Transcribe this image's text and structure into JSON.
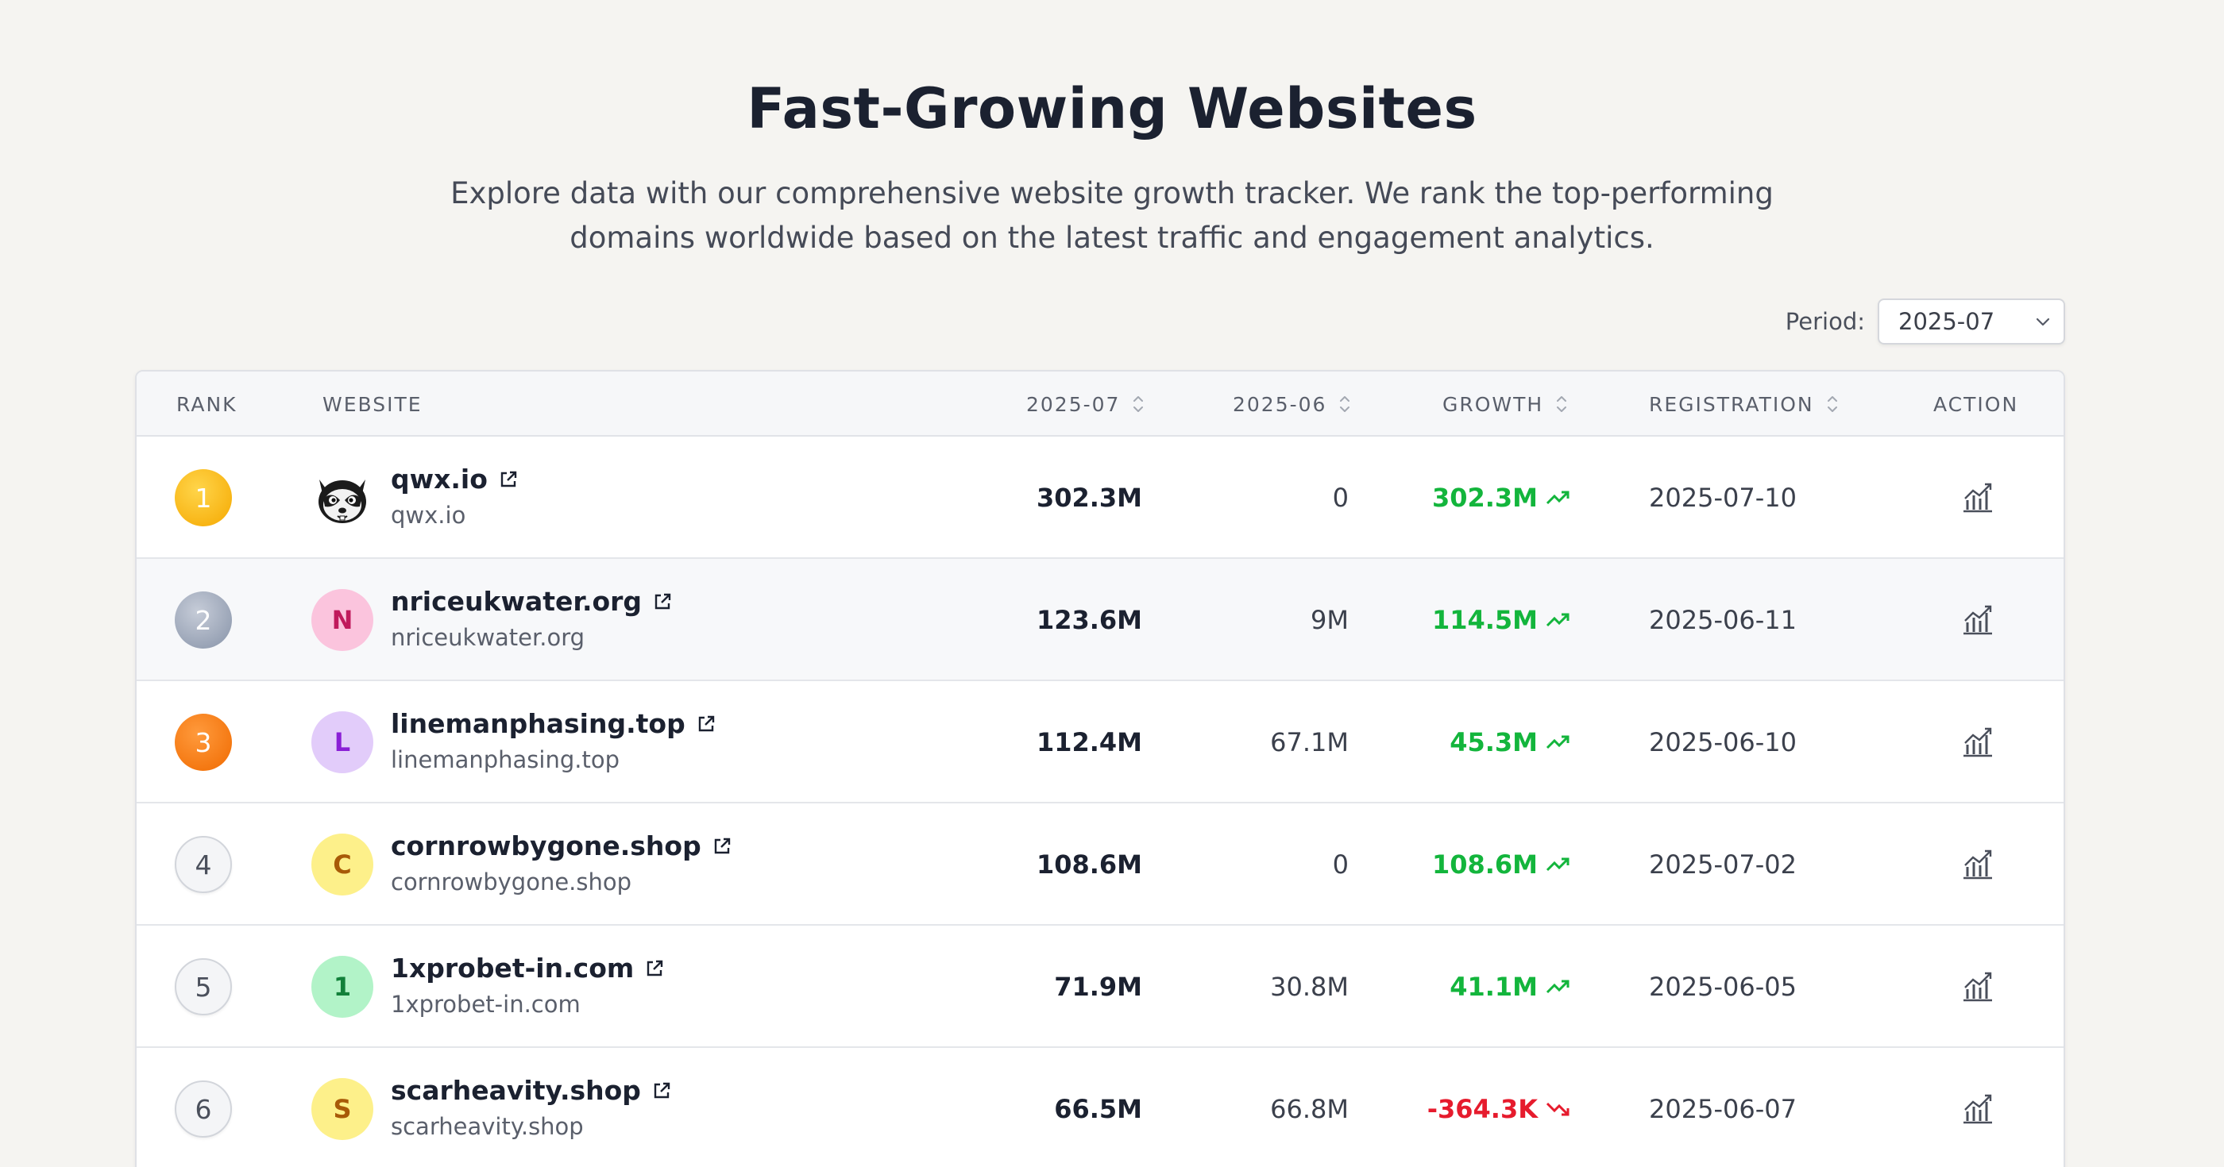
{
  "page": {
    "title": "Fast-Growing Websites",
    "subtitle": "Explore data with our comprehensive website growth tracker. We rank the top-performing domains worldwide based on the latest traffic and engagement analytics."
  },
  "period": {
    "label": "Period:",
    "value": "2025-07"
  },
  "table": {
    "headers": {
      "rank": "RANK",
      "website": "WEBSITE",
      "current": "2025-07",
      "previous": "2025-06",
      "growth": "GROWTH",
      "registration": "REGISTRATION",
      "action": "ACTION"
    },
    "rows": [
      {
        "rank": "1",
        "name": "qwx.io",
        "domain": "qwx.io",
        "avatar": "",
        "current": "302.3M",
        "previous": "0",
        "growth": "302.3M",
        "trend": "up",
        "registration": "2025-07-10"
      },
      {
        "rank": "2",
        "name": "nriceukwater.org",
        "domain": "nriceukwater.org",
        "avatar": "N",
        "current": "123.6M",
        "previous": "9M",
        "growth": "114.5M",
        "trend": "up",
        "registration": "2025-06-11"
      },
      {
        "rank": "3",
        "name": "linemanphasing.top",
        "domain": "linemanphasing.top",
        "avatar": "L",
        "current": "112.4M",
        "previous": "67.1M",
        "growth": "45.3M",
        "trend": "up",
        "registration": "2025-06-10"
      },
      {
        "rank": "4",
        "name": "cornrowbygone.shop",
        "domain": "cornrowbygone.shop",
        "avatar": "C",
        "current": "108.6M",
        "previous": "0",
        "growth": "108.6M",
        "trend": "up",
        "registration": "2025-07-02"
      },
      {
        "rank": "5",
        "name": "1xprobet-in.com",
        "domain": "1xprobet-in.com",
        "avatar": "1",
        "current": "71.9M",
        "previous": "30.8M",
        "growth": "41.1M",
        "trend": "up",
        "registration": "2025-06-05"
      },
      {
        "rank": "6",
        "name": "scarheavity.shop",
        "domain": "scarheavity.shop",
        "avatar": "S",
        "current": "66.5M",
        "previous": "66.8M",
        "growth": "-364.3K",
        "trend": "down",
        "registration": "2025-06-07"
      }
    ]
  },
  "colors": {
    "growth_up": "#13b53c",
    "growth_down": "#e61b2d",
    "rank_gold": "#f5a800",
    "rank_silver": "#8793a8",
    "rank_bronze": "#f06a00"
  },
  "icons": {
    "external_link": "external-link-icon",
    "trend_up": "trend-up-icon",
    "trend_down": "trend-down-icon",
    "action": "chart-icon",
    "sort": "sort-icon",
    "dropdown": "chevron-down-icon"
  }
}
